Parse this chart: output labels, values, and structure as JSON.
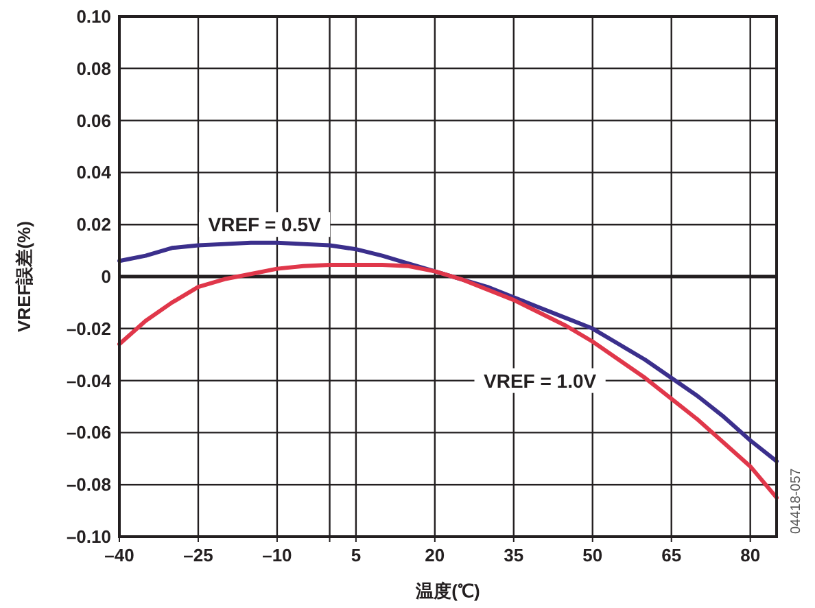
{
  "chart_data": {
    "type": "line",
    "xlabel": "温度(℃)",
    "ylabel": "VREF誤差(%)",
    "xlim": [
      -40,
      85
    ],
    "xticks": [
      {
        "value": -40,
        "label": "–40"
      },
      {
        "value": -25,
        "label": "–25"
      },
      {
        "value": -10,
        "label": "–10"
      },
      {
        "value": 0,
        "label": null
      },
      5,
      20,
      35,
      50,
      65,
      80
    ],
    "ylim": [
      -0.1,
      0.1
    ],
    "yticks": [
      {
        "value": -0.1,
        "label": "–0.10"
      },
      {
        "value": -0.08,
        "label": "–0.08"
      },
      {
        "value": -0.06,
        "label": "–0.06"
      },
      {
        "value": -0.04,
        "label": "–0.04"
      },
      {
        "value": -0.02,
        "label": "–0.02"
      },
      0,
      {
        "value": 0.02,
        "label": "0.02"
      },
      {
        "value": 0.04,
        "label": "0.04"
      },
      {
        "value": 0.06,
        "label": "0.06"
      },
      {
        "value": 0.08,
        "label": "0.08"
      },
      {
        "value": 0.1,
        "label": "0.10"
      }
    ],
    "grid": true,
    "marker": "none",
    "line_style": "solid",
    "x": [
      -40,
      -35,
      -30,
      -25,
      -20,
      -15,
      -10,
      -5,
      0,
      5,
      10,
      15,
      20,
      25,
      30,
      35,
      40,
      45,
      50,
      55,
      60,
      65,
      70,
      75,
      80,
      85
    ],
    "series": [
      {
        "name": "VREF = 0.5V",
        "color": "#3b2f8c",
        "values": [
          0.006,
          0.008,
          0.011,
          0.012,
          0.0125,
          0.013,
          0.013,
          0.0125,
          0.012,
          0.0105,
          0.008,
          0.005,
          0.002,
          -0.001,
          -0.004,
          -0.008,
          -0.012,
          -0.016,
          -0.02,
          -0.026,
          -0.032,
          -0.039,
          -0.046,
          -0.054,
          -0.063,
          -0.071
        ]
      },
      {
        "name": "VREF = 1.0V",
        "color": "#e0374a",
        "values": [
          -0.026,
          -0.017,
          -0.01,
          -0.004,
          -0.001,
          0.001,
          0.003,
          0.004,
          0.0045,
          0.0045,
          0.0045,
          0.004,
          0.002,
          -0.001,
          -0.005,
          -0.009,
          -0.014,
          -0.019,
          -0.025,
          -0.032,
          -0.039,
          -0.047,
          -0.055,
          -0.064,
          -0.073,
          -0.085
        ]
      }
    ],
    "ref_lines": [
      {
        "axis": "y",
        "value": 0,
        "color": "#231f20"
      }
    ],
    "annotations": [
      "04418-057"
    ]
  }
}
